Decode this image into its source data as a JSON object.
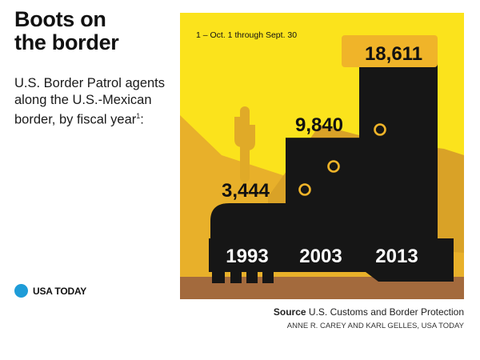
{
  "title_line1": "Boots on",
  "title_line2": "the border",
  "subtitle": "U.S. Border Patrol agents along the U.S.-Mexican border, by fiscal year",
  "footnote_marker": "1",
  "footnote": "1 – Oct. 1 through Sept. 30",
  "brand": "USA TODAY",
  "source_label": "Source",
  "source_text": "U.S. Customs and Border Protection",
  "credit": "ANNE R. CAREY AND KARL GELLES, USA TODAY",
  "colors": {
    "sky": "#fbe31c",
    "mountain": "#e8b02a",
    "mountain_dark": "#d9a227",
    "cactus": "#e0aa28",
    "ground": "#a36a3d",
    "boot": "#161616",
    "accent": "#f0b429",
    "brand_dot": "#1e9cd8"
  },
  "chart_data": {
    "type": "bar",
    "title": "Boots on the border",
    "ylabel": "U.S. Border Patrol agents",
    "categories": [
      "1993",
      "2003",
      "2013"
    ],
    "values": [
      3444,
      9840,
      18611
    ],
    "value_labels": [
      "3,444",
      "9,840",
      "18,611"
    ],
    "ylim": [
      0,
      18611
    ]
  }
}
